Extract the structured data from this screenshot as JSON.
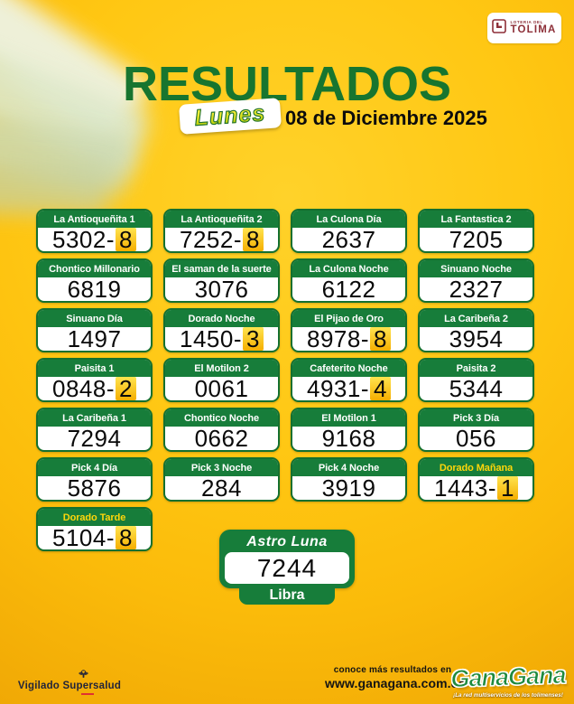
{
  "colors": {
    "green": "#177d3a",
    "dark_green_title": "#17752f",
    "maroon": "#8d2f38",
    "background_yellow": "#ffc713",
    "highlight_gold": "#f5ae00",
    "accent_header_text": "#ffd60a"
  },
  "tolima": {
    "small": "LOTERIA DEL",
    "name": "TOLIMA"
  },
  "header": {
    "title": "RESULTADOS",
    "day": "Lunes",
    "date": "08 de Diciembre 2025"
  },
  "results": [
    {
      "label": "La Antioqueñita 1",
      "number": "5302-",
      "highlight": "8",
      "accent": false
    },
    {
      "label": "La Antioqueñita 2",
      "number": "7252-",
      "highlight": "8",
      "accent": false
    },
    {
      "label": "La Culona Día",
      "number": "2637",
      "highlight": "",
      "accent": false
    },
    {
      "label": "La Fantastica 2",
      "number": "7205",
      "highlight": "",
      "accent": false
    },
    {
      "label": "Chontico Millonario",
      "number": "6819",
      "highlight": "",
      "accent": false
    },
    {
      "label": "El saman de la suerte",
      "number": "3076",
      "highlight": "",
      "accent": false
    },
    {
      "label": "La Culona Noche",
      "number": "6122",
      "highlight": "",
      "accent": false
    },
    {
      "label": "Sinuano Noche",
      "number": "2327",
      "highlight": "",
      "accent": false
    },
    {
      "label": "Sinuano Día",
      "number": "1497",
      "highlight": "",
      "accent": false
    },
    {
      "label": "Dorado Noche",
      "number": "1450-",
      "highlight": "3",
      "accent": false
    },
    {
      "label": "El Pijao de Oro",
      "number": "8978-",
      "highlight": "8",
      "accent": false
    },
    {
      "label": "La Caribeña 2",
      "number": "3954",
      "highlight": "",
      "accent": false
    },
    {
      "label": "Paisita 1",
      "number": "0848-",
      "highlight": "2",
      "accent": false
    },
    {
      "label": "El Motilon 2",
      "number": "0061",
      "highlight": "",
      "accent": false
    },
    {
      "label": "Cafeterito Noche",
      "number": "4931-",
      "highlight": "4",
      "accent": false
    },
    {
      "label": "Paisita 2",
      "number": "5344",
      "highlight": "",
      "accent": false
    },
    {
      "label": "La Caribeña 1",
      "number": "7294",
      "highlight": "",
      "accent": false
    },
    {
      "label": "Chontico Noche",
      "number": "0662",
      "highlight": "",
      "accent": false
    },
    {
      "label": "El Motilon 1",
      "number": "9168",
      "highlight": "",
      "accent": false
    },
    {
      "label": "Pick 3 Día",
      "number": "056",
      "highlight": "",
      "accent": false
    },
    {
      "label": "Pick 4 Día",
      "number": "5876",
      "highlight": "",
      "accent": false
    },
    {
      "label": "Pick 3 Noche",
      "number": "284",
      "highlight": "",
      "accent": false
    },
    {
      "label": "Pick 4 Noche",
      "number": "3919",
      "highlight": "",
      "accent": false
    },
    {
      "label": "Dorado Mañana",
      "number": "1443-",
      "highlight": "1",
      "accent": true
    },
    {
      "label": "Dorado Tarde",
      "number": "5104-",
      "highlight": "8",
      "accent": true
    }
  ],
  "astro": {
    "title": "Astro Luna",
    "number": "7244",
    "sign": "Libra"
  },
  "footer": {
    "vigilado_word1": "Vigilado",
    "vigilado_word2": "Supersalud",
    "more_line1": "conoce más resultados en",
    "more_line2": "www.ganagana.com.co",
    "brand": "GanaGana",
    "tagline": "¡La red multiservicios de los tolimenses!"
  }
}
